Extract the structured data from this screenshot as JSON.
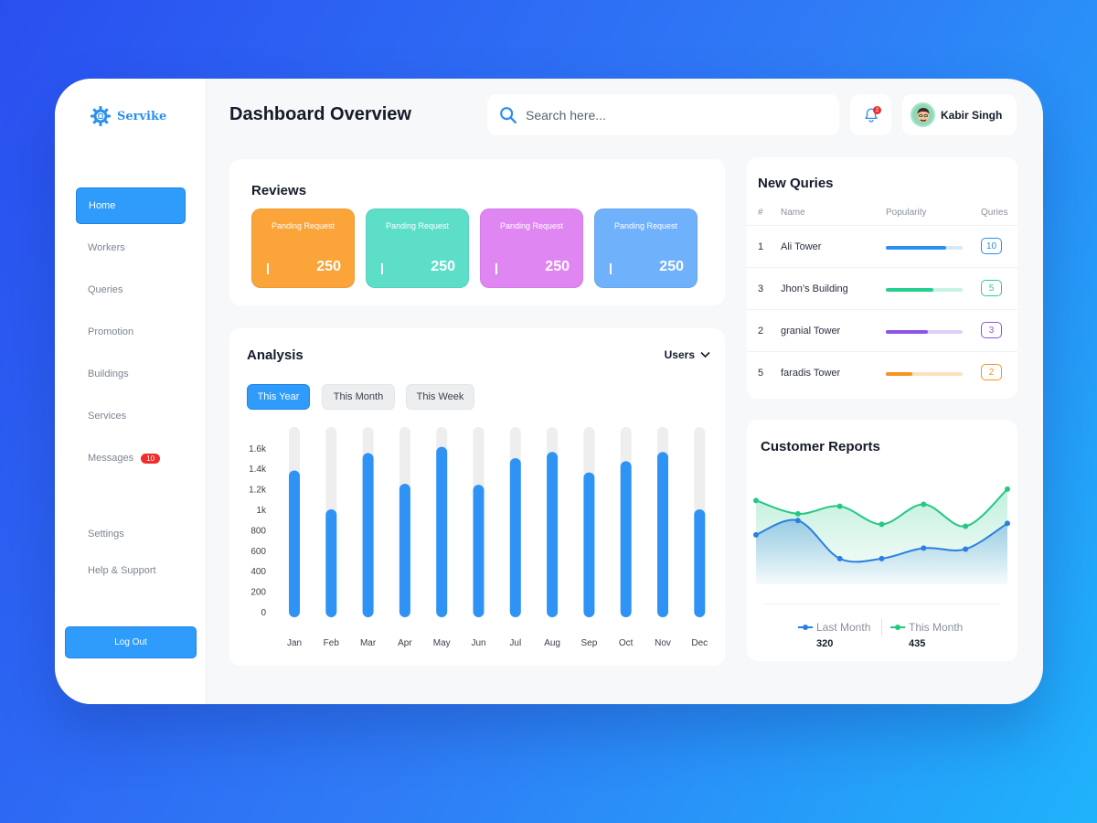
{
  "brand": {
    "name": "Servike",
    "accent": "#2f9bfa"
  },
  "sidebar": {
    "items": [
      {
        "label": "Home",
        "active": true
      },
      {
        "label": "Workers"
      },
      {
        "label": "Queries"
      },
      {
        "label": "Promotion"
      },
      {
        "label": "Buildings"
      },
      {
        "label": "Services"
      },
      {
        "label": "Messages",
        "badge": "10"
      }
    ],
    "bottom": [
      {
        "label": "Settings"
      },
      {
        "label": "Help & Support"
      }
    ],
    "logout": "Log Out"
  },
  "header": {
    "title": "Dashboard Overview",
    "search_placeholder": "Search here...",
    "notifications": "2",
    "user": "Kabir Singh"
  },
  "reviews": {
    "title": "Reviews",
    "tiles": [
      {
        "label": "Panding Request",
        "value": "250",
        "color": "#fba43a"
      },
      {
        "label": "Panding Request",
        "value": "250",
        "color": "#5ddec9"
      },
      {
        "label": "Panding Request",
        "value": "250",
        "color": "#e086f2"
      },
      {
        "label": "Panding Request",
        "value": "250",
        "color": "#6fb1fb"
      }
    ]
  },
  "analysis": {
    "title": "Analysis",
    "dropdown": "Users",
    "filters": [
      "This Year",
      "This Month",
      "This Week"
    ]
  },
  "chart_data": [
    {
      "type": "bar",
      "categories": [
        "Jan",
        "Feb",
        "Mar",
        "Apr",
        "May",
        "Jun",
        "Jul",
        "Aug",
        "Sep",
        "Oct",
        "Nov",
        "Dec"
      ],
      "values": [
        1380,
        1000,
        1550,
        1250,
        1610,
        1240,
        1500,
        1560,
        1360,
        1470,
        1560,
        1000
      ],
      "ylim": [
        0,
        1750
      ],
      "yticks": [
        0,
        200,
        400,
        600,
        800,
        1000,
        1200,
        1400,
        1600
      ],
      "ytick_labels": [
        "0",
        "200",
        "400",
        "600",
        "800",
        "1k",
        "1.2k",
        "1.4k",
        "1.6k"
      ],
      "color": "#2f93f5",
      "track_color": "#eeeeee"
    },
    {
      "type": "area",
      "title": "Customer Reports",
      "x": [
        0,
        1,
        2,
        3,
        4,
        5,
        6
      ],
      "ylim": [
        0,
        120
      ],
      "series": [
        {
          "name": "Last Month",
          "values": [
            52,
            67,
            27,
            27,
            38,
            37,
            64
          ],
          "color": "#2b7fe0",
          "total": "320"
        },
        {
          "name": "This Month",
          "values": [
            88,
            74,
            82,
            63,
            84,
            61,
            100
          ],
          "color": "#22c983",
          "total": "435"
        }
      ]
    }
  ],
  "queries": {
    "title": "New Quries",
    "columns": [
      "#",
      "Name",
      "Popularity",
      "Quries"
    ],
    "rows": [
      {
        "rank": "1",
        "name": "Ali Tower",
        "popularity": 0.78,
        "count": "10",
        "color": "#2b8fef",
        "track": "#d6e8fb"
      },
      {
        "rank": "3",
        "name": "Jhon’s Building",
        "popularity": 0.62,
        "count": "5",
        "color": "#27cf8e",
        "track": "#c8f2e1"
      },
      {
        "rank": "2",
        "name": "granial Tower",
        "popularity": 0.55,
        "count": "3",
        "color": "#8a55e6",
        "track": "#ddd0f7"
      },
      {
        "rank": "5",
        "name": "faradis Tower",
        "popularity": 0.35,
        "count": "2",
        "color": "#f7931e",
        "track": "#fde1bf"
      }
    ]
  }
}
